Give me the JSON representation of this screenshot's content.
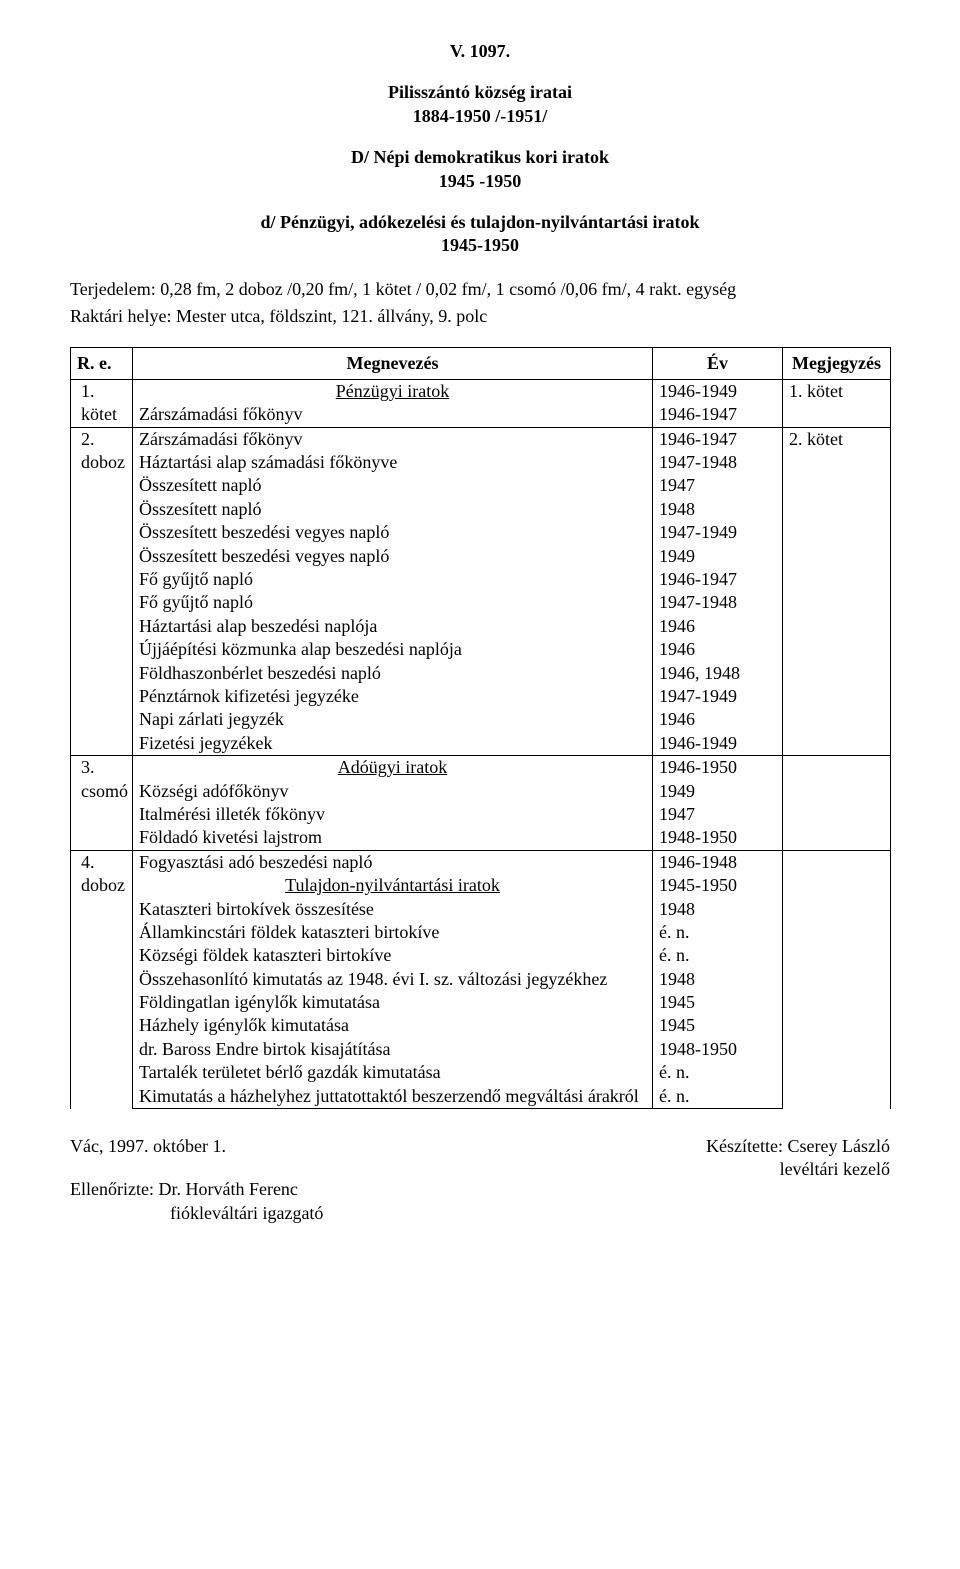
{
  "header": {
    "ref": "V. 1097.",
    "title_line1": "Pilisszántó község iratai",
    "title_line2": "1884-1950 /-1951/",
    "sub_line1": "D/ Népi demokratikus kori iratok",
    "sub_line2": "1945 -1950",
    "subsub_line1": "d/ Pénzügyi, adókezelési és tulajdon-nyilvántartási iratok",
    "subsub_line2": "1945-1950"
  },
  "meta": {
    "terjedelem": "Terjedelem: 0,28 fm, 2 doboz /0,20 fm/, 1 kötet / 0,02 fm/, 1 csomó /0,06 fm/, 4 rakt. egység",
    "raktari": "Raktári helye: Mester utca, földszint, 121. állvány, 9. polc"
  },
  "table": {
    "headers": {
      "re": "R. e.",
      "megnevezes": "Megnevezés",
      "ev": "Év",
      "megjegyzes": "Megjegyzés"
    },
    "sections": [
      {
        "ref_no": "1.",
        "ref_unit": "kötet",
        "title": "Pénzügyi iratok",
        "title_year": "1946-1949",
        "note": "1. kötet",
        "rows": [
          {
            "name": "Zárszámadási főkönyv",
            "year": "1946-1947"
          }
        ]
      },
      {
        "ref_no": "2.",
        "ref_unit": "doboz",
        "note": "2. kötet",
        "rows": [
          {
            "name": "Zárszámadási főkönyv",
            "year": "1946-1947"
          },
          {
            "name": "Háztartási alap számadási főkönyve",
            "year": "1947-1948"
          },
          {
            "name": "Összesített napló",
            "year": "1947"
          },
          {
            "name": "Összesített napló",
            "year": "1948"
          },
          {
            "name": "Összesített beszedési vegyes napló",
            "year": "1947-1949"
          },
          {
            "name": "Összesített beszedési vegyes napló",
            "year": "1949"
          },
          {
            "name": "Fő gyűjtő napló",
            "year": "1946-1947"
          },
          {
            "name": "Fő gyűjtő napló",
            "year": "1947-1948"
          },
          {
            "name": "Háztartási alap beszedési naplója",
            "year": "1946"
          },
          {
            "name": "Újjáépítési közmunka alap beszedési naplója",
            "year": "1946"
          },
          {
            "name": "Földhaszonbérlet beszedési napló",
            "year": "1946, 1948"
          },
          {
            "name": "Pénztárnok kifizetési jegyzéke",
            "year": "1947-1949"
          },
          {
            "name": "Napi zárlati jegyzék",
            "year": "1946"
          },
          {
            "name": "Fizetési jegyzékek",
            "year": "1946-1949"
          }
        ]
      },
      {
        "ref_no": "3.",
        "ref_unit": "csomó",
        "title": "Adóügyi iratok",
        "title_year": "1946-1950",
        "rows": [
          {
            "name": "Községi adófőkönyv",
            "year": "1949"
          },
          {
            "name": "Italmérési illeték főkönyv",
            "year": "1947"
          },
          {
            "name": "Földadó kivetési lajstrom",
            "year": "1948-1950"
          }
        ]
      },
      {
        "ref_no": "4.",
        "ref_unit": "doboz",
        "pre_rows": [
          {
            "name": "Fogyasztási adó beszedési napló",
            "year": "1946-1948"
          }
        ],
        "title": "Tulajdon-nyilvántartási iratok",
        "title_year": "1945-1950",
        "rows": [
          {
            "name": "Kataszteri birtokívek összesítése",
            "year": "1948"
          },
          {
            "name": "Államkincstári földek kataszteri birtokíve",
            "year": "é. n."
          },
          {
            "name": "Községi földek kataszteri birtokíve",
            "year": "é. n."
          },
          {
            "name": "Összehasonlító kimutatás az 1948. évi I. sz. változási jegyzékhez",
            "year": "1948"
          },
          {
            "name": "Földingatlan igénylők kimutatása",
            "year": "1945"
          },
          {
            "name": "Házhely igénylők kimutatása",
            "year": "1945"
          },
          {
            "name": "dr. Baross Endre birtok kisajátítása",
            "year": "1948-1950"
          },
          {
            "name": "Tartalék területet bérlő gazdák kimutatása",
            "year": "é. n."
          },
          {
            "name": "Kimutatás a házhelyhez juttatottaktól beszerzendő megváltási árakról",
            "year": "é. n."
          }
        ]
      }
    ]
  },
  "footer": {
    "left_line1": "Vác, 1997. október 1.",
    "left_line2": "Ellenőrizte: Dr. Horváth Ferenc",
    "left_line3": "fiókleváltári igazgató",
    "right_line1": "Készítette: Cserey László",
    "right_line2": "levéltári kezelő"
  }
}
